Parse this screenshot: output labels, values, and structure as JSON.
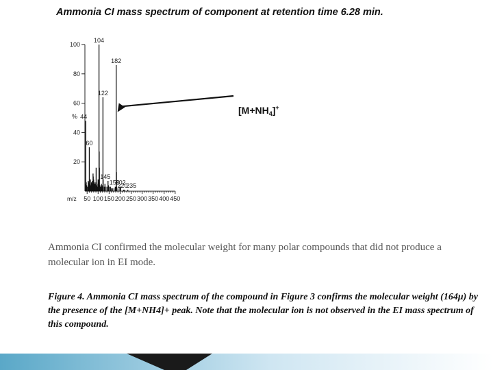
{
  "slide": {
    "title": "Ammonia CI mass spectrum of component at retention time 6.28 min.",
    "caption": "Ammonia CI confirmed the molecular weight for many polar compounds that did not produce a molecular ion in EI mode.",
    "figure_caption": "Figure 4.  Ammonia CI mass spectrum of the compound in Figure 3 confirms the molecular weight (164μ) by the presence of the [M+NH4]+ peak.  Note that the molecular ion is not observed in the EI mass spectrum of this compound."
  },
  "chart_data": {
    "type": "bar",
    "title": "",
    "xlabel": "m/z",
    "ylabel": "%",
    "xlim": [
      40,
      450
    ],
    "ylim": [
      0,
      100
    ],
    "x_ticks": [
      50,
      100,
      150,
      200,
      250,
      300,
      350,
      400,
      450
    ],
    "y_ticks": [
      20,
      40,
      60,
      80,
      100
    ],
    "grid": false,
    "annotation": {
      "text": "[M+NH",
      "sub": "4",
      "sup": "+",
      "tail": "]",
      "points_to": 182
    },
    "peaks": [
      {
        "mz": 43,
        "intensity": 5
      },
      {
        "mz": 44,
        "intensity": 48,
        "label": "44"
      },
      {
        "mz": 46,
        "intensity": 6
      },
      {
        "mz": 48,
        "intensity": 4
      },
      {
        "mz": 52,
        "intensity": 3
      },
      {
        "mz": 55,
        "intensity": 7
      },
      {
        "mz": 58,
        "intensity": 6
      },
      {
        "mz": 60,
        "intensity": 30,
        "label": "60"
      },
      {
        "mz": 62,
        "intensity": 5
      },
      {
        "mz": 65,
        "intensity": 8
      },
      {
        "mz": 68,
        "intensity": 4
      },
      {
        "mz": 70,
        "intensity": 6
      },
      {
        "mz": 72,
        "intensity": 5
      },
      {
        "mz": 74,
        "intensity": 7
      },
      {
        "mz": 77,
        "intensity": 12
      },
      {
        "mz": 78,
        "intensity": 10
      },
      {
        "mz": 80,
        "intensity": 8
      },
      {
        "mz": 84,
        "intensity": 5
      },
      {
        "mz": 86,
        "intensity": 6
      },
      {
        "mz": 89,
        "intensity": 5
      },
      {
        "mz": 91,
        "intensity": 16
      },
      {
        "mz": 92,
        "intensity": 6
      },
      {
        "mz": 94,
        "intensity": 4
      },
      {
        "mz": 96,
        "intensity": 3
      },
      {
        "mz": 99,
        "intensity": 5
      },
      {
        "mz": 100,
        "intensity": 8
      },
      {
        "mz": 102,
        "intensity": 6
      },
      {
        "mz": 104,
        "intensity": 100,
        "label": "104"
      },
      {
        "mz": 105,
        "intensity": 27
      },
      {
        "mz": 106,
        "intensity": 16
      },
      {
        "mz": 108,
        "intensity": 4
      },
      {
        "mz": 111,
        "intensity": 3
      },
      {
        "mz": 115,
        "intensity": 5
      },
      {
        "mz": 118,
        "intensity": 4
      },
      {
        "mz": 120,
        "intensity": 3
      },
      {
        "mz": 122,
        "intensity": 64,
        "label": "122"
      },
      {
        "mz": 123,
        "intensity": 8
      },
      {
        "mz": 128,
        "intensity": 3
      },
      {
        "mz": 131,
        "intensity": 5
      },
      {
        "mz": 133,
        "intensity": 3
      },
      {
        "mz": 140,
        "intensity": 3
      },
      {
        "mz": 145,
        "intensity": 7,
        "label": "145"
      },
      {
        "mz": 147,
        "intensity": 4
      },
      {
        "mz": 150,
        "intensity": 3
      },
      {
        "mz": 156,
        "intensity": 3,
        "label": "156"
      },
      {
        "mz": 159,
        "intensity": 2
      },
      {
        "mz": 165,
        "intensity": 2
      },
      {
        "mz": 172,
        "intensity": 2
      },
      {
        "mz": 178,
        "intensity": 3
      },
      {
        "mz": 182,
        "intensity": 86,
        "label": "182"
      },
      {
        "mz": 183,
        "intensity": 13
      },
      {
        "mz": 184,
        "intensity": 3
      },
      {
        "mz": 190,
        "intensity": 2
      },
      {
        "mz": 199,
        "intensity": 3
      },
      {
        "mz": 202,
        "intensity": 3,
        "label": "202"
      },
      {
        "mz": 215,
        "intensity": 1
      },
      {
        "mz": 220,
        "intensity": 1,
        "label": "220"
      },
      {
        "mz": 235,
        "intensity": 1,
        "label": "235"
      }
    ]
  }
}
